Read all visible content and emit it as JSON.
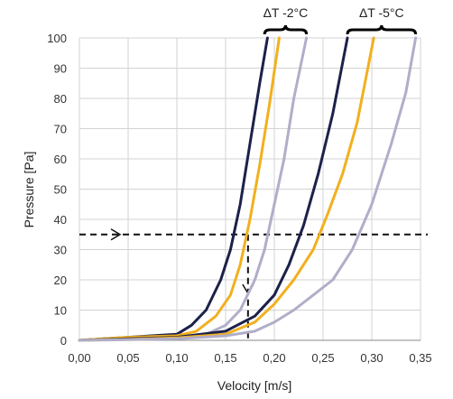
{
  "chart_data": {
    "type": "line",
    "xlabel": "Velocity [m/s]",
    "ylabel": "Pressure [Pa]",
    "xlim": [
      0,
      0.35
    ],
    "ylim": [
      0,
      100
    ],
    "x_ticks": [
      "0,00",
      "0,05",
      "0,10",
      "0,15",
      "0,20",
      "0,25",
      "0,30",
      "0,35"
    ],
    "y_ticks": [
      "0",
      "10",
      "20",
      "30",
      "40",
      "50",
      "60",
      "70",
      "80",
      "90",
      "100"
    ],
    "grid": true,
    "legend": "none",
    "series": [
      {
        "group": "dT -2C",
        "color": "#1c2149",
        "points": [
          [
            0,
            0
          ],
          [
            0.05,
            1
          ],
          [
            0.1,
            2
          ],
          [
            0.115,
            5
          ],
          [
            0.13,
            10
          ],
          [
            0.145,
            20
          ],
          [
            0.155,
            30
          ],
          [
            0.165,
            45
          ],
          [
            0.175,
            65
          ],
          [
            0.185,
            85
          ],
          [
            0.193,
            100
          ]
        ]
      },
      {
        "group": "dT -2C",
        "color": "#f2b01e",
        "points": [
          [
            0,
            0
          ],
          [
            0.05,
            1
          ],
          [
            0.1,
            1.5
          ],
          [
            0.12,
            3
          ],
          [
            0.14,
            8
          ],
          [
            0.155,
            15
          ],
          [
            0.165,
            25
          ],
          [
            0.175,
            40
          ],
          [
            0.185,
            58
          ],
          [
            0.195,
            78
          ],
          [
            0.205,
            100
          ]
        ]
      },
      {
        "group": "dT -2C",
        "color": "#b0aec8",
        "points": [
          [
            0,
            0
          ],
          [
            0.05,
            0.5
          ],
          [
            0.1,
            1
          ],
          [
            0.13,
            2
          ],
          [
            0.15,
            5
          ],
          [
            0.165,
            10
          ],
          [
            0.18,
            20
          ],
          [
            0.19,
            30
          ],
          [
            0.2,
            45
          ],
          [
            0.21,
            60
          ],
          [
            0.22,
            80
          ],
          [
            0.233,
            100
          ]
        ]
      },
      {
        "group": "dT -5C",
        "color": "#1c2149",
        "points": [
          [
            0,
            0
          ],
          [
            0.05,
            0.5
          ],
          [
            0.1,
            1
          ],
          [
            0.15,
            3
          ],
          [
            0.18,
            8
          ],
          [
            0.2,
            15
          ],
          [
            0.215,
            25
          ],
          [
            0.23,
            38
          ],
          [
            0.245,
            55
          ],
          [
            0.26,
            75
          ],
          [
            0.275,
            100
          ]
        ]
      },
      {
        "group": "dT -5C",
        "color": "#f2b01e",
        "points": [
          [
            0,
            0
          ],
          [
            0.05,
            0.3
          ],
          [
            0.1,
            0.8
          ],
          [
            0.15,
            2
          ],
          [
            0.18,
            6
          ],
          [
            0.2,
            12
          ],
          [
            0.22,
            20
          ],
          [
            0.24,
            30
          ],
          [
            0.255,
            42
          ],
          [
            0.27,
            55
          ],
          [
            0.285,
            72
          ],
          [
            0.302,
            100
          ]
        ]
      },
      {
        "group": "dT -5C",
        "color": "#b0aec8",
        "points": [
          [
            0,
            0
          ],
          [
            0.05,
            0.2
          ],
          [
            0.1,
            0.5
          ],
          [
            0.15,
            1.5
          ],
          [
            0.18,
            3
          ],
          [
            0.2,
            6
          ],
          [
            0.22,
            10
          ],
          [
            0.24,
            15
          ],
          [
            0.26,
            20
          ],
          [
            0.28,
            30
          ],
          [
            0.3,
            45
          ],
          [
            0.32,
            65
          ],
          [
            0.335,
            82
          ],
          [
            0.345,
            100
          ]
        ]
      }
    ],
    "reference": {
      "y": 35,
      "x": 0.173,
      "color": "#111111"
    },
    "annotations": [
      {
        "text": "ΔT -2°C",
        "x_from": 0.19,
        "x_to": 0.233
      },
      {
        "text": "ΔT -5°C",
        "x_from": 0.275,
        "x_to": 0.345
      }
    ]
  }
}
